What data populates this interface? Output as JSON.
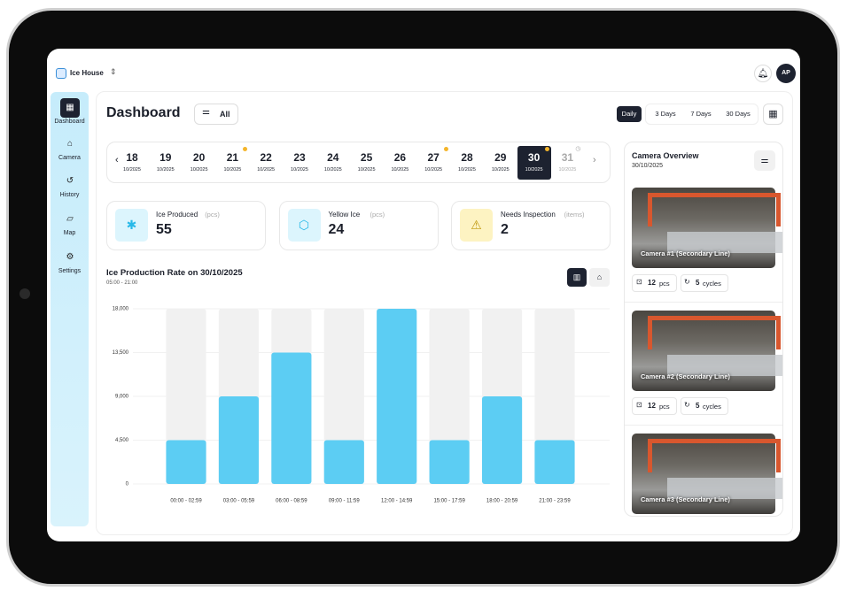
{
  "app": {
    "name": "Ice House",
    "user_initials": "AP"
  },
  "sidebar": {
    "items": [
      "Dashboard",
      "Camera",
      "History",
      "Map",
      "Settings"
    ]
  },
  "header": {
    "title": "Dashboard",
    "filter": "All",
    "ranges": [
      "Daily",
      "3 Days",
      "7 Days",
      "30 Days"
    ]
  },
  "dates": {
    "items": [
      {
        "day": "18",
        "month": "10/2025"
      },
      {
        "day": "19",
        "month": "10/2025"
      },
      {
        "day": "20",
        "month": "10/2025"
      },
      {
        "day": "21",
        "month": "10/2025",
        "alert": true
      },
      {
        "day": "22",
        "month": "10/2025"
      },
      {
        "day": "23",
        "month": "10/2025"
      },
      {
        "day": "24",
        "month": "10/2025"
      },
      {
        "day": "25",
        "month": "10/2025"
      },
      {
        "day": "26",
        "month": "10/2025"
      },
      {
        "day": "27",
        "month": "10/2025",
        "alert": true
      },
      {
        "day": "28",
        "month": "10/2025"
      },
      {
        "day": "29",
        "month": "10/2025"
      },
      {
        "day": "30",
        "month": "10/2025",
        "alert": true,
        "selected": true
      },
      {
        "day": "31",
        "month": "10/2025",
        "disabled": true
      }
    ]
  },
  "stats": [
    {
      "label": "Ice Produced",
      "unit": "(pcs)",
      "value": 55
    },
    {
      "label": "Yellow Ice",
      "unit": "(pcs)",
      "value": 24
    },
    {
      "label": "Needs Inspection",
      "unit": "(items)",
      "value": 2
    }
  ],
  "chart_data": {
    "type": "bar",
    "title": "Ice Production Rate on 30/10/2025",
    "subtitle": "05:00 - 21:00",
    "categories": [
      "00:00 - 02:59",
      "03:00 - 05:59",
      "06:00 - 08:59",
      "09:00 - 11:59",
      "12:00 - 14:59",
      "15:00 - 17:59",
      "18:00 - 20:59",
      "21:00 - 23:59"
    ],
    "values": [
      4500,
      9000,
      13500,
      4500,
      18000,
      4500,
      9000,
      4500
    ],
    "color": "#5ccdf3",
    "track_color": "#f1f1f1",
    "ylim": [
      0,
      18000
    ],
    "yticks": [
      0,
      {
        "value": 4500,
        "label": "4,500"
      },
      {
        "value": 9000,
        "label": "9,000"
      },
      {
        "value": 13500,
        "label": "13,500"
      },
      {
        "value": 18000,
        "label": "18,000"
      }
    ],
    "grid": true
  },
  "camera_overview": {
    "title": "Camera Overview",
    "date": "30/10/2025",
    "cameras": [
      {
        "name": "Camera #1 (Secondary Line)",
        "count": 12,
        "count_unit": "pcs",
        "cycles": 5,
        "cycles_unit": "cycles"
      },
      {
        "name": "Camera #2 (Secondary Line)",
        "count": 12,
        "count_unit": "pcs",
        "cycles": 5,
        "cycles_unit": "cycles"
      },
      {
        "name": "Camera #3 (Secondary Line)"
      }
    ]
  }
}
